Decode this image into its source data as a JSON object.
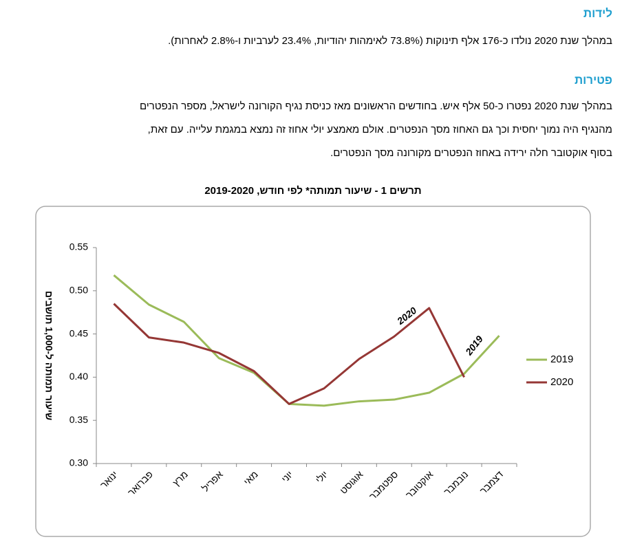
{
  "births": {
    "heading": "לידות",
    "text": "במהלך שנת 2020 נולדו כ-176 אלף תינוקות (73.8% לאימהות יהודיות, 23.4% לערביות ו-2.8% לאחרות)."
  },
  "deaths": {
    "heading": "פטירות",
    "lines": [
      "במהלך שנת 2020 נפטרו כ-50 אלף איש. בחודשים הראשונים מאז כניסת נגיף הקורונה לישראל, מספר הנפטרים",
      "מהנגיף היה נמוך יחסית וכך גם האחוז מסך הנפטרים. אולם מאמצע יולי אחוז זה נמצא במגמת עלייה. עם זאת,",
      "בסוף אוקטובר חלה ירידה באחוז הנפטרים מקורונה מסך הנפטרים."
    ]
  },
  "chart_data": {
    "type": "line",
    "title": "תרשים 1 - שיעור תמותה* לפי חודש, 2019-2020",
    "y_label": "שיעור תמותה ל-1,000 תושבים",
    "categories": [
      "ינואר",
      "פברואר",
      "מרץ",
      "אפריל",
      "מאי",
      "יוני",
      "יולי",
      "אוגוסט",
      "ספטמבר",
      "אוקטובר",
      "נובמבר",
      "דצמבר"
    ],
    "series": [
      {
        "name": "2019",
        "color": "#9bbb59",
        "values": [
          0.518,
          0.484,
          0.464,
          0.422,
          0.405,
          0.369,
          0.367,
          0.372,
          0.374,
          0.382,
          0.404,
          0.448
        ]
      },
      {
        "name": "2020",
        "color": "#953735",
        "values": [
          0.485,
          0.446,
          0.44,
          0.428,
          0.407,
          0.369,
          0.387,
          0.421,
          0.447,
          0.48,
          0.4,
          null
        ]
      }
    ],
    "annotations": [
      "2020",
      "2019"
    ],
    "ylim": [
      0.3,
      0.55
    ],
    "yticks": [
      {
        "value": 0.3,
        "label": "0.30"
      },
      {
        "value": 0.35,
        "label": "0.35"
      },
      {
        "value": 0.4,
        "label": "0.40"
      },
      {
        "value": 0.45,
        "label": "0.45"
      },
      {
        "value": 0.5,
        "label": "0.50"
      },
      {
        "value": 0.55,
        "label": "0.55"
      }
    ],
    "grid": false,
    "legend": "right"
  }
}
